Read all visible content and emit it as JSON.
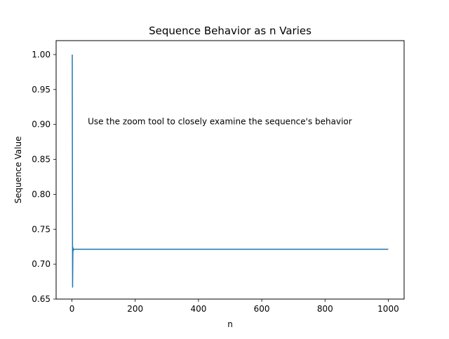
{
  "chart_data": {
    "type": "line",
    "title": "Sequence Behavior as n Varies",
    "xlabel": "n",
    "ylabel": "Sequence Value",
    "xlim": [
      -50,
      1050
    ],
    "ylim": [
      0.65,
      1.02
    ],
    "xticks": [
      0,
      200,
      400,
      600,
      800,
      1000
    ],
    "xtick_labels": [
      "0",
      "200",
      "400",
      "600",
      "800",
      "1000"
    ],
    "yticks": [
      0.65,
      0.7,
      0.75,
      0.8,
      0.85,
      0.9,
      0.95,
      1.0
    ],
    "ytick_labels": [
      "0.65",
      "0.70",
      "0.75",
      "0.80",
      "0.85",
      "0.90",
      "0.95",
      "1.00"
    ],
    "grid": false,
    "legend": "none",
    "annotation": {
      "text": "Use the zoom tool to closely examine the sequence's behavior",
      "x": 50,
      "y": 0.9
    },
    "series": [
      {
        "color": "#1f77b4",
        "x": [
          1,
          2,
          3,
          4,
          5,
          6,
          7,
          8,
          10,
          15,
          20,
          50,
          100,
          1000
        ],
        "y": [
          1.0,
          0.667,
          0.724,
          0.719,
          0.7216,
          0.7211,
          0.7213,
          0.7213,
          0.7213,
          0.7213,
          0.7213,
          0.7213,
          0.7213,
          0.7213
        ]
      }
    ]
  }
}
